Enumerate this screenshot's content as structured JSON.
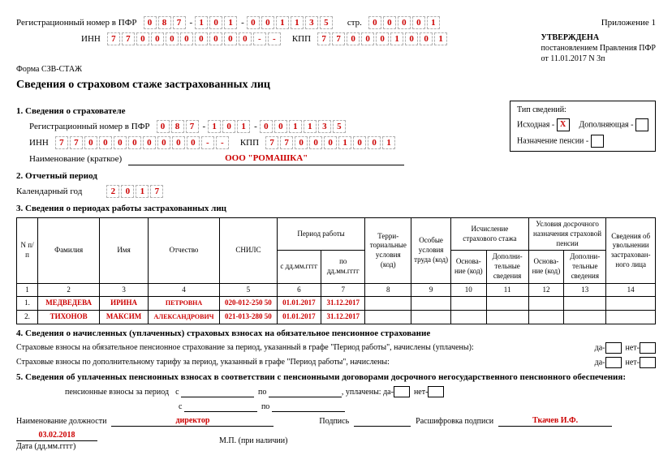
{
  "header": {
    "reg_label": "Регистрационный номер в ПФР",
    "reg_parts": [
      [
        "0",
        "8",
        "7"
      ],
      [
        "1",
        "0",
        "1"
      ],
      [
        "0",
        "0",
        "1",
        "1",
        "3",
        "5"
      ]
    ],
    "page_label": "стр.",
    "page_cells": [
      "0",
      "0",
      "0",
      "0",
      "1"
    ],
    "appendix": "Приложение 1",
    "inn_label": "ИНН",
    "inn_cells": [
      "7",
      "7",
      "0",
      "0",
      "0",
      "0",
      "0",
      "0",
      "0",
      "0",
      "-",
      "-"
    ],
    "kpp_label": "КПП",
    "kpp_cells": [
      "7",
      "7",
      "0",
      "0",
      "0",
      "1",
      "0",
      "0",
      "1"
    ],
    "approved": "УТВЕРЖДЕНА",
    "approved2": "постановлением Правления ПФР",
    "approved3": "от 11.01.2017 N 3п",
    "form_code": "Форма СЗВ-СТАЖ",
    "title": "Сведения о страховом стаже застрахованных лиц"
  },
  "section1": {
    "heading": "1. Сведения о страхователе",
    "reg_label": "Регистрационный номер в ПФР",
    "reg_parts": [
      [
        "0",
        "8",
        "7"
      ],
      [
        "1",
        "0",
        "1"
      ],
      [
        "0",
        "0",
        "1",
        "1",
        "3",
        "5"
      ]
    ],
    "inn_label": "ИНН",
    "inn_cells": [
      "7",
      "7",
      "0",
      "0",
      "0",
      "0",
      "0",
      "0",
      "0",
      "0",
      "-",
      "-"
    ],
    "kpp_label": "КПП",
    "kpp_cells": [
      "7",
      "7",
      "0",
      "0",
      "0",
      "1",
      "0",
      "0",
      "1"
    ],
    "name_label": "Наименование (краткое)",
    "name_value": "ООО \"РОМАШКА\"",
    "type_box": {
      "title": "Тип сведений:",
      "opt1": "Исходная -",
      "opt1_mark": "X",
      "opt2": "Дополняющая -",
      "opt3": "Назначение пенсии -"
    }
  },
  "section2": {
    "heading": "2. Отчетный период",
    "year_label": "Календарный год",
    "year_cells": [
      "2",
      "0",
      "1",
      "7"
    ]
  },
  "section3": {
    "heading": "3. Сведения о периодах работы застрахованных лиц",
    "heads": {
      "n": "N п/п",
      "fam": "Фамилия",
      "name": "Имя",
      "otch": "Отчество",
      "snils": "СНИЛС",
      "period": "Период работы",
      "from": "с дд.мм.гггг",
      "to": "по дд.мм.гггг",
      "terr": "Терри-\nториальные условия (код)",
      "osob": "Особые условия труда (код)",
      "stazh": "Исчисление страхового стажа",
      "dosroch": "Условия досрочного назначения страховой пенсии",
      "osn": "Основа-ние (код)",
      "dop": "Дополни-тельные сведения",
      "uvol": "Сведения об увольнении застрахован-ного лица"
    },
    "nums": [
      "1",
      "2",
      "3",
      "4",
      "5",
      "6",
      "7",
      "8",
      "9",
      "10",
      "11",
      "12",
      "13",
      "14"
    ],
    "rows": [
      {
        "n": "1.",
        "fam": "МЕДВЕДЕВА",
        "name": "ИРИНА",
        "otch": "ПЕТРОВНА",
        "snils": "020-012-250 50",
        "from": "01.01.2017",
        "to": "31.12.2017"
      },
      {
        "n": "2.",
        "fam": "ТИХОНОВ",
        "name": "МАКСИМ",
        "otch": "АЛЕКСАНДРОВИЧ",
        "snils": "021-013-280 50",
        "from": "01.01.2017",
        "to": "31.12.2017"
      }
    ]
  },
  "section4": {
    "heading": "4. Сведения о начисленных (уплаченных) страховых взносах на обязательное пенсионное страхование",
    "line1": "Страховые взносы на обязательное пенсионное страхование за период, указанный в графе \"Период работы\", начислены (уплачены):",
    "line2": "Страховые взносы по дополнительному тарифу за период, указанный в графе \"Период работы\", начислены:",
    "da": "да-",
    "net": "нет-"
  },
  "section5": {
    "heading": "5. Сведения об уплаченных пенсионных взносах в соответствии с пенсионными договорами досрочного негосударственного пенсионного обеспечения:",
    "contrib_label": "пенсионные взносы за период",
    "s": "с",
    "po": "по",
    "paid": ", уплачены:",
    "da": "да-",
    "net": "нет-"
  },
  "footer": {
    "position_label": "Наименование должности",
    "position_value": "директор",
    "sign_label": "Подпись",
    "decode_label": "Расшифровка подписи",
    "decode_value": "Ткачев И.Ф.",
    "date_value": "03.02.2018",
    "date_label": "Дата (дд.мм.гггг)",
    "mp": "М.П. (при наличии)"
  }
}
